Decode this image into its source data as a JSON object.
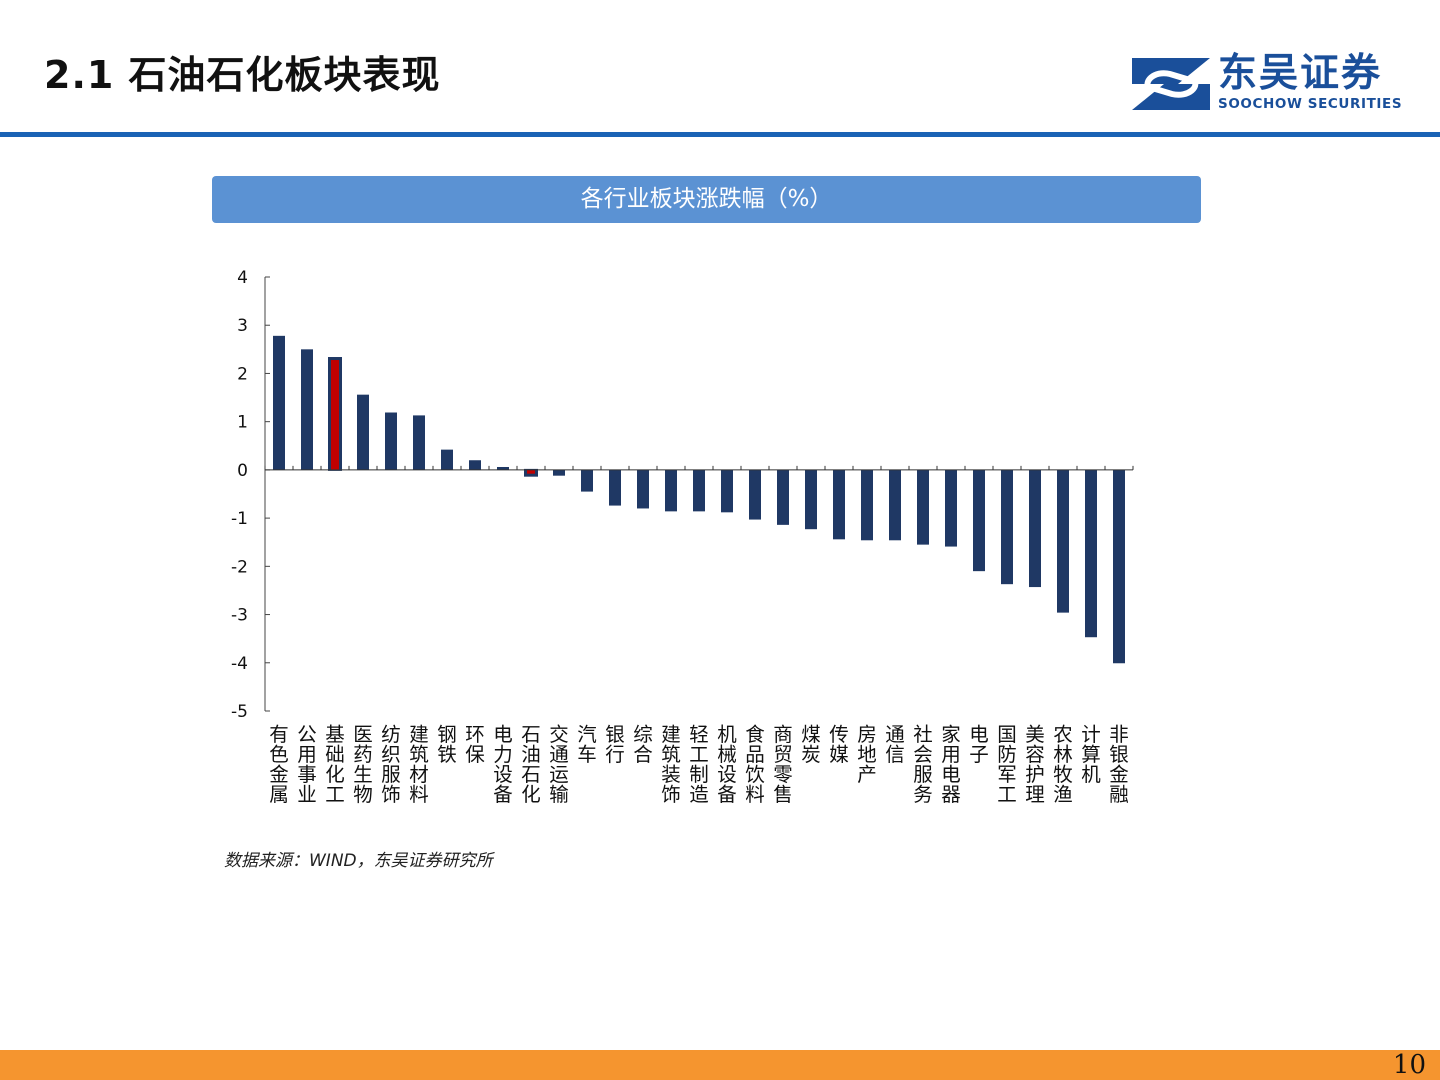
{
  "slide": {
    "title": "2.1 石油石化板块表现",
    "logo_cn": "东吴证券",
    "logo_en": "SOOCHOW SECURITIES",
    "page_number": "10",
    "source": "数据来源：WIND，东吴证券研究所",
    "accent_color": "#1a63b5",
    "footer_color": "#f5952f"
  },
  "chart_data": {
    "type": "bar",
    "title": "各行业板块涨跌幅（%）",
    "xlabel": "",
    "ylabel": "",
    "ylim": [
      -5,
      4
    ],
    "yticks": [
      4,
      3,
      2,
      1,
      0,
      -1,
      -2,
      -3,
      -4,
      -5
    ],
    "grid": false,
    "legend": "none",
    "bar_color": "#1f3864",
    "highlight_color": "#c00000",
    "highlight_categories": [
      "基础化工",
      "石油石化"
    ],
    "categories": [
      "有色金属",
      "公用事业",
      "基础化工",
      "医药生物",
      "纺织服饰",
      "建筑材料",
      "钢铁",
      "环保",
      "电力设备",
      "石油石化",
      "交通运输",
      "汽车",
      "银行",
      "综合",
      "建筑装饰",
      "轻工制造",
      "机械设备",
      "食品饮料",
      "商贸零售",
      "煤炭",
      "传媒",
      "房地产",
      "通信",
      "社会服务",
      "家用电器",
      "电子",
      "国防军工",
      "美容护理",
      "农林牧渔",
      "计算机",
      "非银金融"
    ],
    "values": [
      2.78,
      2.5,
      2.32,
      1.56,
      1.19,
      1.13,
      0.42,
      0.2,
      0.06,
      -0.12,
      -0.12,
      -0.45,
      -0.74,
      -0.8,
      -0.86,
      -0.86,
      -0.88,
      -1.03,
      -1.14,
      -1.23,
      -1.44,
      -1.46,
      -1.46,
      -1.55,
      -1.59,
      -2.1,
      -2.37,
      -2.43,
      -2.96,
      -3.47,
      -4.01
    ]
  }
}
